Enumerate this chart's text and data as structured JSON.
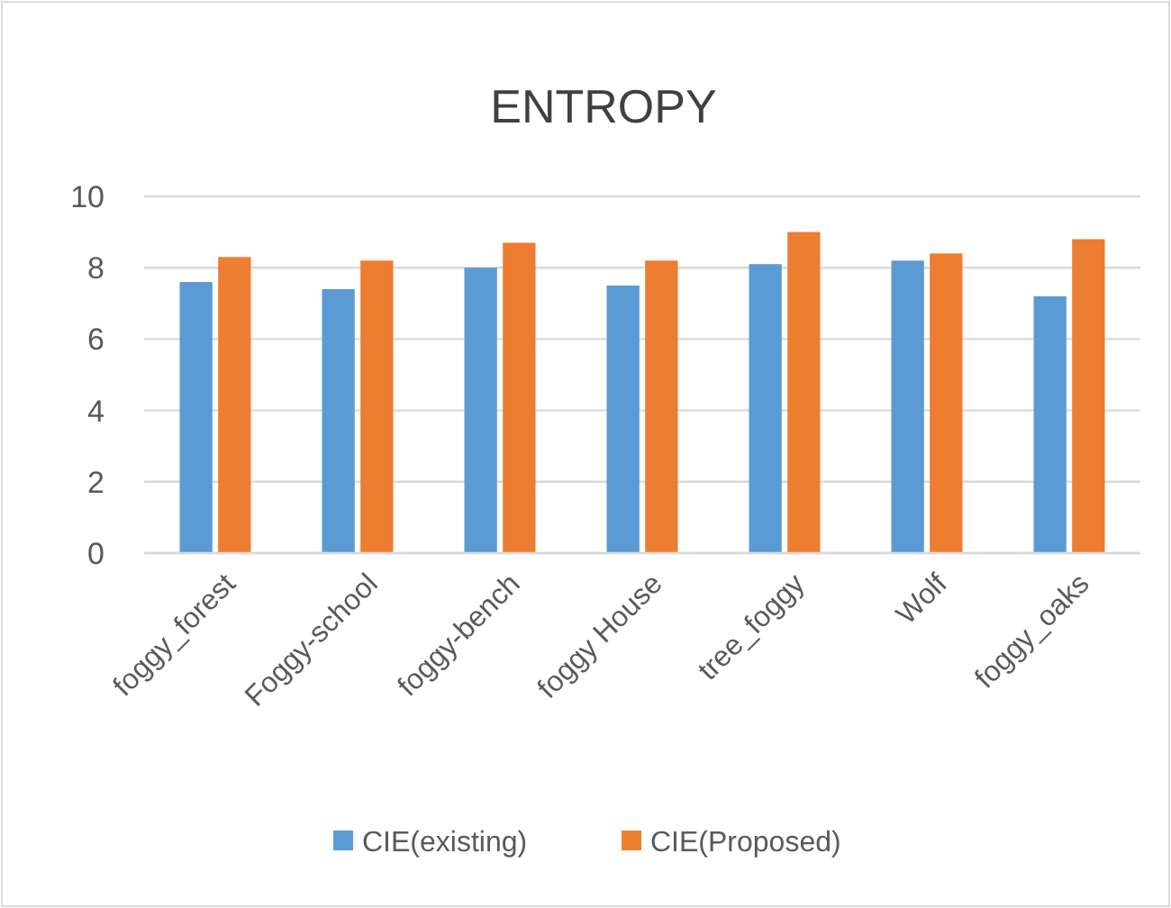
{
  "chart_data": {
    "type": "bar",
    "title": "ENTROPY",
    "categories": [
      "foggy_forest",
      "Foggy-school",
      "foggy-bench",
      "foggy House",
      "tree_foggy",
      "Wolf",
      "foggy_oaks"
    ],
    "series": [
      {
        "name": "CIE(existing)",
        "color": "#5b9bd5",
        "values": [
          7.6,
          7.4,
          8.0,
          7.5,
          8.1,
          8.2,
          7.2
        ]
      },
      {
        "name": "CIE(Proposed)",
        "color": "#ed7d31",
        "values": [
          8.3,
          8.2,
          8.7,
          8.2,
          9.0,
          8.4,
          8.8
        ]
      }
    ],
    "ylim": [
      0,
      10
    ],
    "yticks": [
      0,
      2,
      4,
      6,
      8,
      10
    ],
    "grid": "y",
    "legend": "bottom"
  }
}
